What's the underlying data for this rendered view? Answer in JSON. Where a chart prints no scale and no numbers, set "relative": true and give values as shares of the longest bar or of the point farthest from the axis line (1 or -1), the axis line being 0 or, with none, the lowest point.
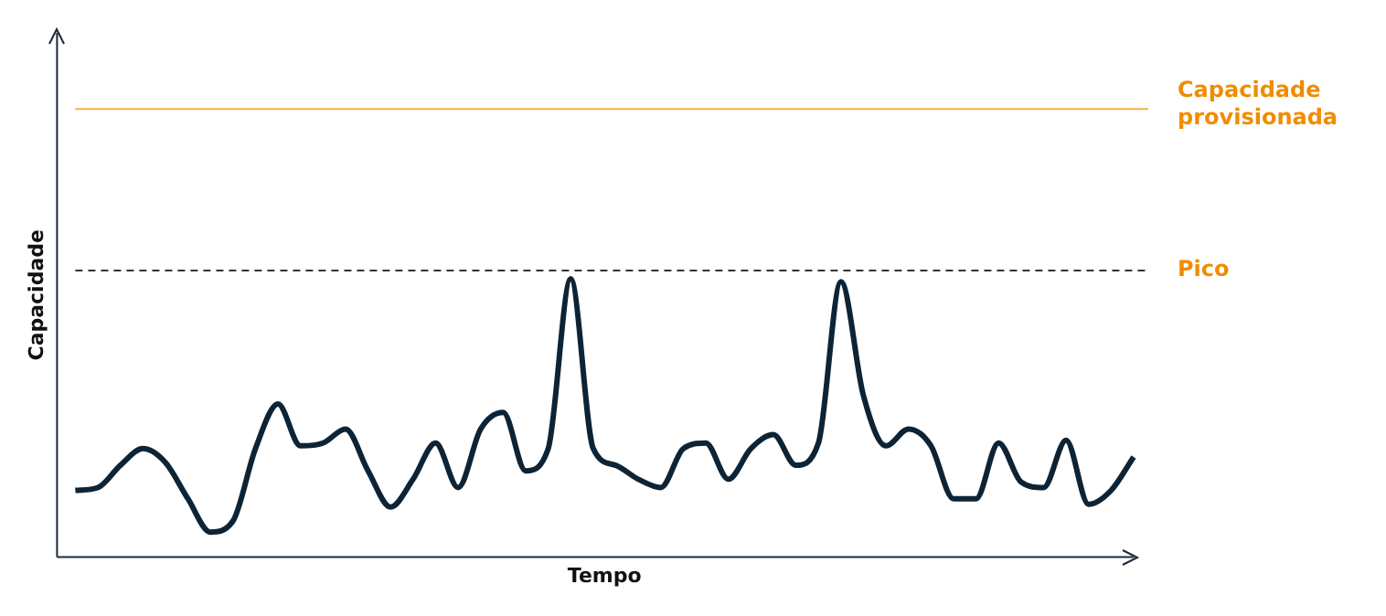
{
  "chart_data": {
    "type": "line",
    "relative": true,
    "xlabel": "Tempo",
    "ylabel": "Capacidade",
    "tick_labels": false,
    "grid": false,
    "legend": false,
    "marker": "none",
    "line_style": "solid",
    "categories": [
      null,
      null,
      null,
      null,
      null,
      null,
      null,
      null,
      null,
      null,
      null,
      null,
      null,
      null,
      null,
      null,
      null,
      null,
      null,
      null,
      null,
      null,
      null,
      null,
      null,
      null,
      null,
      null,
      null,
      null,
      null,
      null,
      null,
      null,
      null,
      null,
      null,
      null,
      null,
      null,
      null,
      null,
      null,
      null,
      null,
      null,
      null,
      null
    ],
    "series": [
      {
        "color": "#0d2436",
        "values": [
          0.24,
          0.25,
          0.33,
          0.39,
          0.34,
          0.21,
          0.09,
          0.13,
          0.39,
          0.55,
          0.4,
          0.41,
          0.46,
          0.31,
          0.18,
          0.28,
          0.41,
          0.25,
          0.46,
          0.52,
          0.31,
          0.39,
          1,
          0.39,
          0.33,
          0.28,
          0.25,
          0.39,
          0.41,
          0.28,
          0.39,
          0.44,
          0.33,
          0.41,
          0.99,
          0.58,
          0.4,
          0.46,
          0.4,
          0.21,
          0.21,
          0.41,
          0.27,
          0.25,
          0.42,
          0.19,
          0.24,
          0.36
        ]
      }
    ],
    "ref_lines": [
      {
        "axis": "y",
        "value": 1.61,
        "label": "Capacidade provisionada",
        "color": "#f5b04a",
        "line_style": "solid"
      },
      {
        "axis": "y",
        "value": 1.03,
        "label": "Pico",
        "color": "#333333",
        "line_style": "dashed"
      }
    ]
  }
}
